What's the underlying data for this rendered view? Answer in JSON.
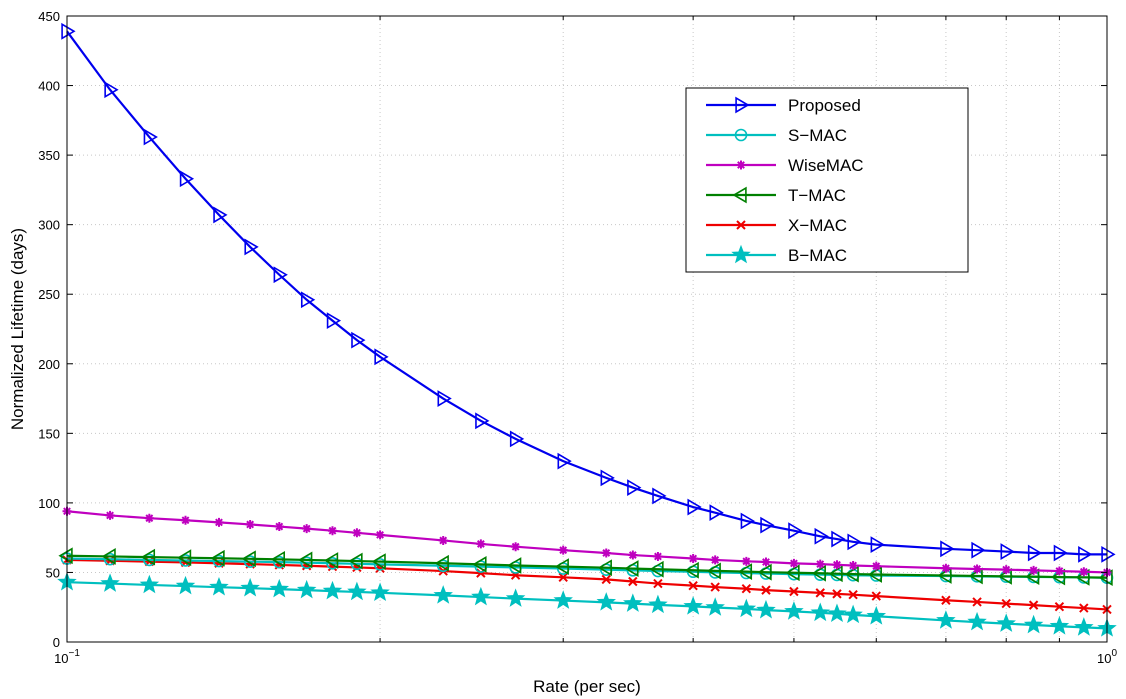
{
  "chart_data": {
    "type": "line",
    "title": "",
    "xlabel": "Rate (per sec)",
    "ylabel": "Normalized Lifetime (days)",
    "xscale": "log",
    "xlim": [
      0.1,
      1
    ],
    "ylim": [
      0,
      450
    ],
    "grid": true,
    "legend_position": "top-right",
    "x_ticks": [
      {
        "value": 0.1,
        "base": "10",
        "exp": "−1"
      },
      {
        "value": 1,
        "base": "10",
        "exp": "0"
      }
    ],
    "y_ticks": [
      "0",
      "50",
      "100",
      "150",
      "200",
      "250",
      "300",
      "350",
      "400",
      "450"
    ],
    "series": [
      {
        "name": "Proposed",
        "color": "#0000ee",
        "marker": "triangle-right",
        "points": [
          [
            0.1,
            439
          ],
          [
            0.11,
            397
          ],
          [
            0.12,
            363
          ],
          [
            0.13,
            333
          ],
          [
            0.14,
            307
          ],
          [
            0.15,
            284
          ],
          [
            0.16,
            264
          ],
          [
            0.17,
            246
          ],
          [
            0.18,
            231
          ],
          [
            0.19,
            217
          ],
          [
            0.2,
            205
          ],
          [
            0.23,
            175
          ],
          [
            0.25,
            159
          ],
          [
            0.27,
            146
          ],
          [
            0.3,
            130
          ],
          [
            0.33,
            118
          ],
          [
            0.35,
            111
          ],
          [
            0.37,
            105
          ],
          [
            0.4,
            97
          ],
          [
            0.42,
            93
          ],
          [
            0.45,
            87
          ],
          [
            0.47,
            84
          ],
          [
            0.5,
            80
          ],
          [
            0.53,
            76
          ],
          [
            0.55,
            74
          ],
          [
            0.57,
            72
          ],
          [
            0.6,
            70
          ],
          [
            0.7,
            67
          ],
          [
            0.75,
            66
          ],
          [
            0.8,
            65
          ],
          [
            0.85,
            64
          ],
          [
            0.9,
            64
          ],
          [
            0.95,
            63
          ],
          [
            1,
            63
          ]
        ]
      },
      {
        "name": "S−MAC",
        "color": "#00bfbf",
        "marker": "circle",
        "points": [
          [
            0.1,
            60
          ],
          [
            0.11,
            59.5
          ],
          [
            0.12,
            59
          ],
          [
            0.13,
            58.6
          ],
          [
            0.14,
            58.2
          ],
          [
            0.15,
            57.8
          ],
          [
            0.16,
            57.4
          ],
          [
            0.17,
            57
          ],
          [
            0.18,
            56.6
          ],
          [
            0.19,
            56.2
          ],
          [
            0.2,
            55.8
          ],
          [
            0.23,
            54.8
          ],
          [
            0.25,
            54.2
          ],
          [
            0.27,
            53.6
          ],
          [
            0.3,
            52.8
          ],
          [
            0.33,
            52
          ],
          [
            0.35,
            51.5
          ],
          [
            0.37,
            51
          ],
          [
            0.4,
            50.5
          ],
          [
            0.42,
            50
          ],
          [
            0.45,
            49.6
          ],
          [
            0.47,
            49.2
          ],
          [
            0.5,
            48.8
          ],
          [
            0.53,
            48.4
          ],
          [
            0.55,
            48.2
          ],
          [
            0.57,
            48
          ],
          [
            0.6,
            47.8
          ],
          [
            0.7,
            47.4
          ],
          [
            0.75,
            47.2
          ],
          [
            0.8,
            47
          ],
          [
            0.85,
            46.8
          ],
          [
            0.9,
            46.6
          ],
          [
            0.95,
            46.4
          ],
          [
            1,
            46.2
          ]
        ]
      },
      {
        "name": "WiseMAC",
        "color": "#bf00bf",
        "marker": "asterisk",
        "points": [
          [
            0.1,
            94
          ],
          [
            0.11,
            91
          ],
          [
            0.12,
            89
          ],
          [
            0.13,
            87.5
          ],
          [
            0.14,
            86
          ],
          [
            0.15,
            84.5
          ],
          [
            0.16,
            83
          ],
          [
            0.17,
            81.5
          ],
          [
            0.18,
            80
          ],
          [
            0.19,
            78.5
          ],
          [
            0.2,
            77
          ],
          [
            0.23,
            73
          ],
          [
            0.25,
            70.5
          ],
          [
            0.27,
            68.5
          ],
          [
            0.3,
            66
          ],
          [
            0.33,
            64
          ],
          [
            0.35,
            62.5
          ],
          [
            0.37,
            61.5
          ],
          [
            0.4,
            60
          ],
          [
            0.42,
            59
          ],
          [
            0.45,
            58
          ],
          [
            0.47,
            57.5
          ],
          [
            0.5,
            56.5
          ],
          [
            0.53,
            56
          ],
          [
            0.55,
            55.5
          ],
          [
            0.57,
            55
          ],
          [
            0.6,
            54.5
          ],
          [
            0.7,
            53
          ],
          [
            0.75,
            52.5
          ],
          [
            0.8,
            52
          ],
          [
            0.85,
            51.5
          ],
          [
            0.9,
            51
          ],
          [
            0.95,
            50.5
          ],
          [
            1,
            50
          ]
        ]
      },
      {
        "name": "T−MAC",
        "color": "#008000",
        "marker": "triangle-left",
        "points": [
          [
            0.1,
            62
          ],
          [
            0.11,
            61.5
          ],
          [
            0.12,
            61
          ],
          [
            0.13,
            60.6
          ],
          [
            0.14,
            60.2
          ],
          [
            0.15,
            59.8
          ],
          [
            0.16,
            59.4
          ],
          [
            0.17,
            59
          ],
          [
            0.18,
            58.6
          ],
          [
            0.19,
            58.2
          ],
          [
            0.2,
            57.8
          ],
          [
            0.23,
            56.6
          ],
          [
            0.25,
            55.8
          ],
          [
            0.27,
            55
          ],
          [
            0.3,
            54.2
          ],
          [
            0.33,
            53.4
          ],
          [
            0.35,
            52.8
          ],
          [
            0.37,
            52.3
          ],
          [
            0.4,
            51.6
          ],
          [
            0.42,
            51.1
          ],
          [
            0.45,
            50.6
          ],
          [
            0.47,
            50.2
          ],
          [
            0.5,
            49.8
          ],
          [
            0.53,
            49.4
          ],
          [
            0.55,
            49.1
          ],
          [
            0.57,
            48.8
          ],
          [
            0.6,
            48.5
          ],
          [
            0.7,
            47.8
          ],
          [
            0.75,
            47.5
          ],
          [
            0.8,
            47.2
          ],
          [
            0.85,
            47
          ],
          [
            0.9,
            46.7
          ],
          [
            0.95,
            46.5
          ],
          [
            1,
            46.3
          ]
        ]
      },
      {
        "name": "X−MAC",
        "color": "#ee0000",
        "marker": "x",
        "points": [
          [
            0.1,
            59
          ],
          [
            0.11,
            58.4
          ],
          [
            0.12,
            57.8
          ],
          [
            0.13,
            57.2
          ],
          [
            0.14,
            56.6
          ],
          [
            0.15,
            56
          ],
          [
            0.16,
            55.4
          ],
          [
            0.17,
            54.8
          ],
          [
            0.18,
            54.2
          ],
          [
            0.19,
            53.6
          ],
          [
            0.2,
            53
          ],
          [
            0.23,
            51
          ],
          [
            0.25,
            49.5
          ],
          [
            0.27,
            48
          ],
          [
            0.3,
            46.5
          ],
          [
            0.33,
            45
          ],
          [
            0.35,
            43.5
          ],
          [
            0.37,
            42
          ],
          [
            0.4,
            40.5
          ],
          [
            0.42,
            39.5
          ],
          [
            0.45,
            38.3
          ],
          [
            0.47,
            37.3
          ],
          [
            0.5,
            36.3
          ],
          [
            0.53,
            35.3
          ],
          [
            0.55,
            34.6
          ],
          [
            0.57,
            34
          ],
          [
            0.6,
            33
          ],
          [
            0.7,
            30
          ],
          [
            0.75,
            28.8
          ],
          [
            0.8,
            27.6
          ],
          [
            0.85,
            26.5
          ],
          [
            0.9,
            25.4
          ],
          [
            0.95,
            24.4
          ],
          [
            1,
            23.4
          ]
        ]
      },
      {
        "name": "B−MAC",
        "color": "#00bfbf",
        "marker": "star",
        "points": [
          [
            0.1,
            43
          ],
          [
            0.11,
            42
          ],
          [
            0.12,
            41
          ],
          [
            0.13,
            40.2
          ],
          [
            0.14,
            39.4
          ],
          [
            0.15,
            38.7
          ],
          [
            0.16,
            38
          ],
          [
            0.17,
            37.3
          ],
          [
            0.18,
            36.6
          ],
          [
            0.19,
            36
          ],
          [
            0.2,
            35.4
          ],
          [
            0.23,
            33.5
          ],
          [
            0.25,
            32.3
          ],
          [
            0.27,
            31.2
          ],
          [
            0.3,
            29.8
          ],
          [
            0.33,
            28.5
          ],
          [
            0.35,
            27.6
          ],
          [
            0.37,
            26.7
          ],
          [
            0.4,
            25.6
          ],
          [
            0.42,
            24.8
          ],
          [
            0.45,
            23.8
          ],
          [
            0.47,
            22.9
          ],
          [
            0.5,
            22
          ],
          [
            0.53,
            21
          ],
          [
            0.55,
            20.3
          ],
          [
            0.57,
            19.5
          ],
          [
            0.6,
            18.5
          ],
          [
            0.7,
            15.5
          ],
          [
            0.75,
            14.3
          ],
          [
            0.8,
            13.2
          ],
          [
            0.85,
            12.2
          ],
          [
            0.9,
            11.3
          ],
          [
            0.95,
            10.5
          ],
          [
            1,
            9.8
          ]
        ]
      }
    ]
  }
}
